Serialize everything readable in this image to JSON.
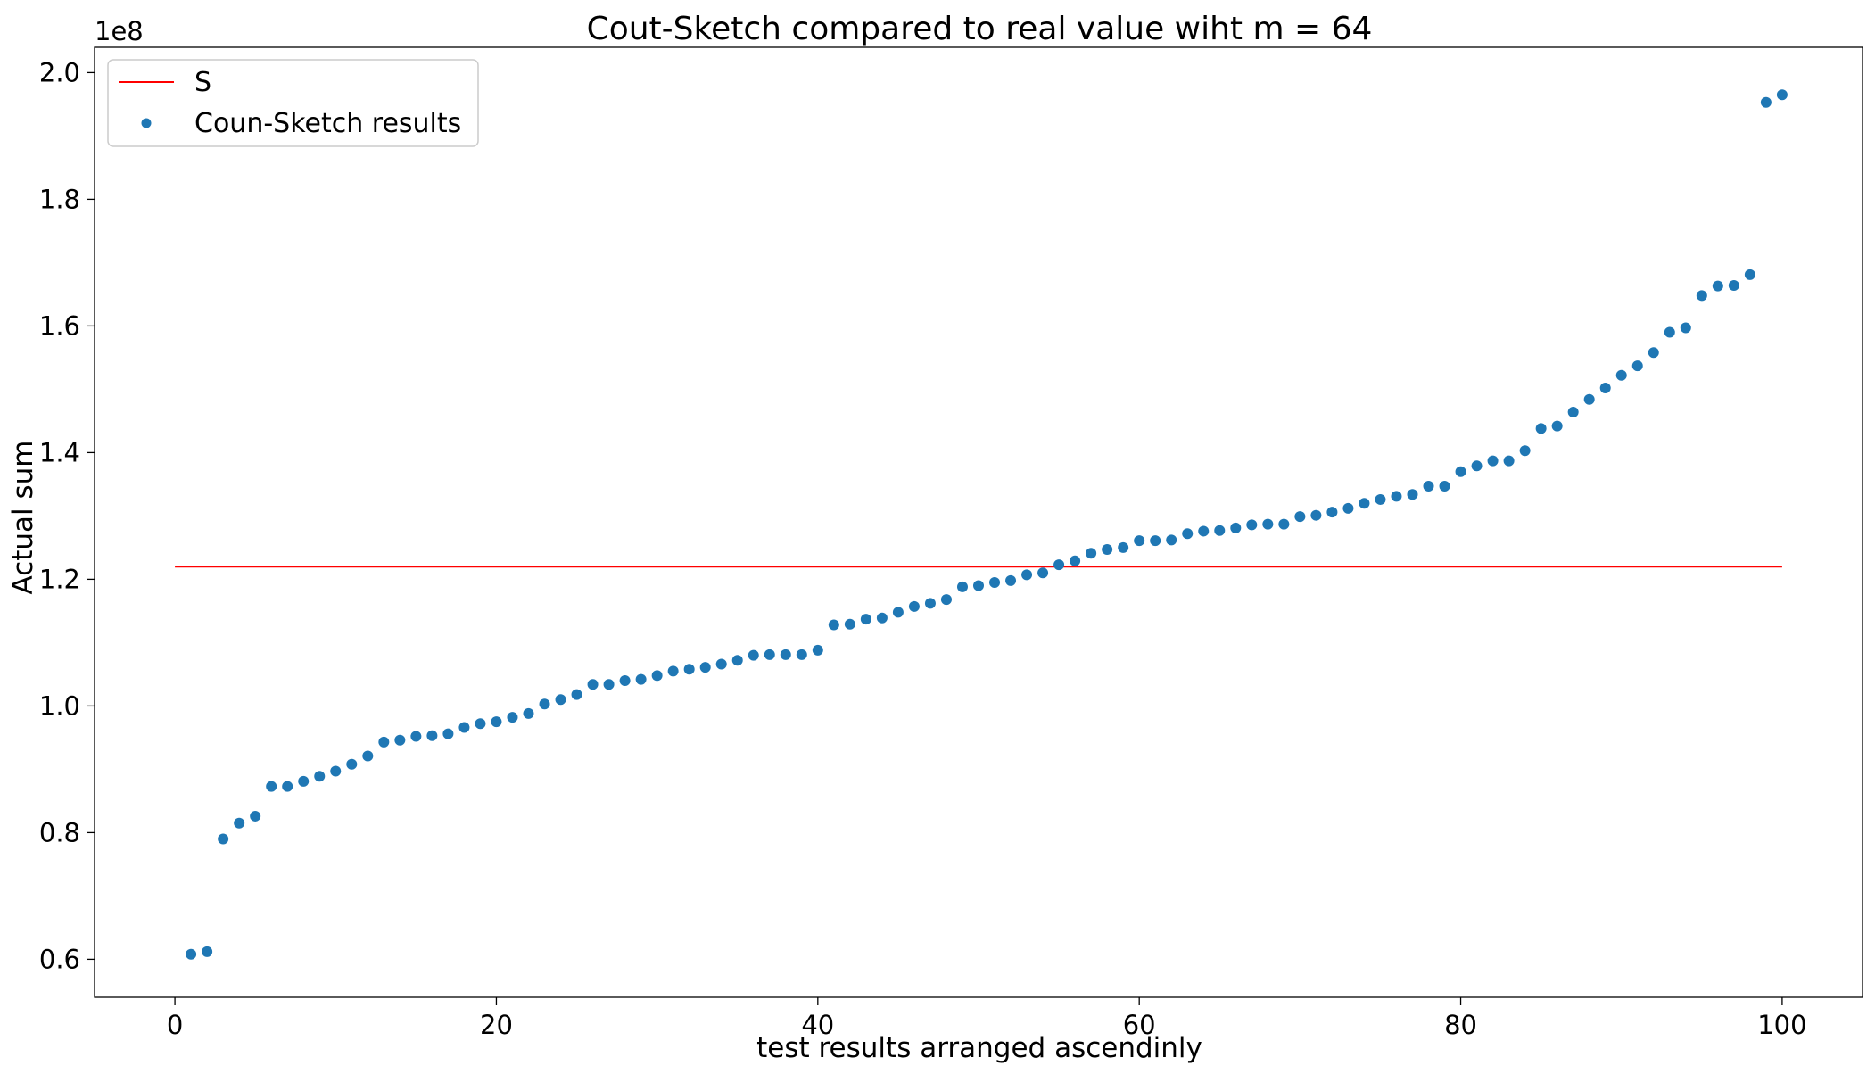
{
  "chart_data": {
    "type": "scatter",
    "title": "Cout-Sketch compared to real value wiht m = 64",
    "xlabel": "test results arranged ascendinly",
    "ylabel": "Actual sum",
    "y_offset_label": "1e8",
    "xlim": [
      -5,
      105
    ],
    "ylim": [
      54000000,
      204000000
    ],
    "xticks": [
      0,
      20,
      40,
      60,
      80,
      100
    ],
    "xtick_labels": [
      "0",
      "20",
      "40",
      "60",
      "80",
      "100"
    ],
    "yticks": [
      60000000,
      80000000,
      100000000,
      120000000,
      140000000,
      160000000,
      180000000,
      200000000
    ],
    "ytick_labels": [
      "0.6",
      "0.8",
      "1.0",
      "1.2",
      "1.4",
      "1.6",
      "1.8",
      "2.0"
    ],
    "grid": false,
    "legend_position": "top-left",
    "line": {
      "name": "S",
      "color": "#ff0000",
      "x": [
        0,
        100
      ],
      "y": [
        122000000,
        122000000
      ]
    },
    "series": [
      {
        "name": "Coun-Sketch results",
        "color": "#1f77b4",
        "x": [
          1,
          2,
          3,
          4,
          5,
          6,
          7,
          8,
          9,
          10,
          11,
          12,
          13,
          14,
          15,
          16,
          17,
          18,
          19,
          20,
          21,
          22,
          23,
          24,
          25,
          26,
          27,
          28,
          29,
          30,
          31,
          32,
          33,
          34,
          35,
          36,
          37,
          38,
          39,
          40,
          41,
          42,
          43,
          44,
          45,
          46,
          47,
          48,
          49,
          50,
          51,
          52,
          53,
          54,
          55,
          56,
          57,
          58,
          59,
          60,
          61,
          62,
          63,
          64,
          65,
          66,
          67,
          68,
          69,
          70,
          71,
          72,
          73,
          74,
          75,
          76,
          77,
          78,
          79,
          80,
          81,
          82,
          83,
          84,
          85,
          86,
          87,
          88,
          89,
          90,
          91,
          92,
          93,
          94,
          95,
          96,
          97,
          98,
          99,
          100
        ],
        "values": [
          60800000,
          61200000,
          79000000,
          81500000,
          82600000,
          87300000,
          87300000,
          88100000,
          88900000,
          89700000,
          90800000,
          92100000,
          94300000,
          94600000,
          95200000,
          95300000,
          95600000,
          96600000,
          97200000,
          97500000,
          98200000,
          98800000,
          100300000,
          101000000,
          101800000,
          103400000,
          103400000,
          104000000,
          104200000,
          104800000,
          105500000,
          105800000,
          106100000,
          106600000,
          107200000,
          108000000,
          108100000,
          108100000,
          108100000,
          108800000,
          112800000,
          112900000,
          113700000,
          113900000,
          114800000,
          115700000,
          116200000,
          116800000,
          118800000,
          119000000,
          119500000,
          119800000,
          120700000,
          121000000,
          122300000,
          122900000,
          124100000,
          124700000,
          125000000,
          126100000,
          126100000,
          126200000,
          127200000,
          127600000,
          127700000,
          128100000,
          128600000,
          128700000,
          128700000,
          129900000,
          130100000,
          130600000,
          131200000,
          132000000,
          132600000,
          133100000,
          133400000,
          134700000,
          134700000,
          137000000,
          137900000,
          138700000,
          138700000,
          140300000,
          143800000,
          144200000,
          146400000,
          148400000,
          150200000,
          152200000,
          153700000,
          155800000,
          159000000,
          159700000,
          164800000,
          166300000,
          166400000,
          168100000,
          195300000,
          196500000
        ]
      }
    ]
  }
}
